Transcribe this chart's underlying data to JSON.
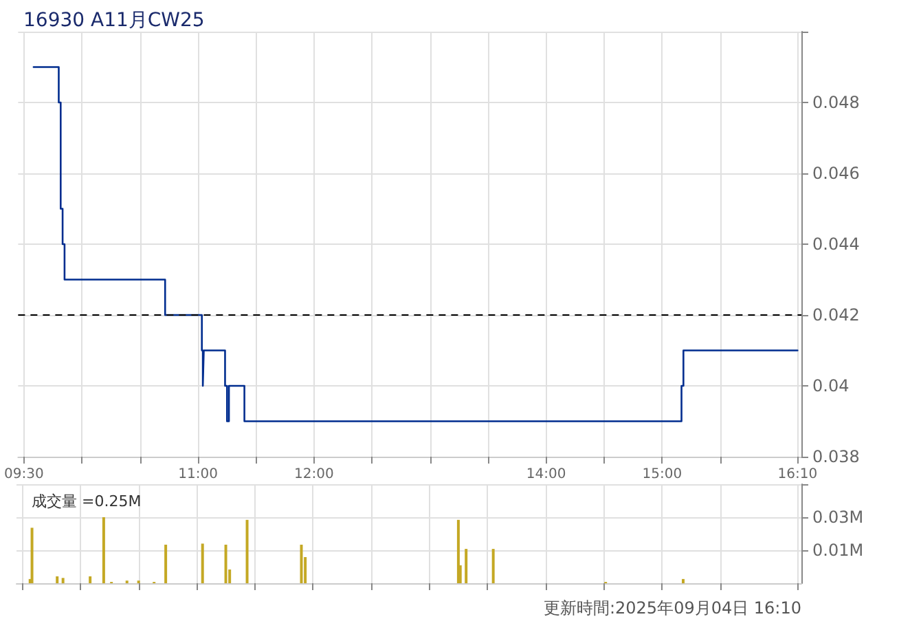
{
  "chart_data": [
    {
      "type": "step",
      "title": "16930 A11月CW25",
      "series": [
        {
          "color": "#002d8f",
          "x": [
            9.5833,
            9.8,
            9.8167,
            9.8333,
            9.85,
            10.7167,
            11.0333,
            11.0417,
            11.05,
            11.2333,
            11.25,
            11.2667,
            11.4,
            15.1667,
            15.1833,
            16.1667
          ],
          "values": [
            0.049,
            0.048,
            0.045,
            0.044,
            0.043,
            0.042,
            0.041,
            0.04,
            0.041,
            0.04,
            0.039,
            0.04,
            0.039,
            0.04,
            0.041,
            0.041
          ]
        }
      ],
      "xlim": [
        9.45,
        16.2
      ],
      "xticks": [
        {
          "value": 9.5,
          "label": "09:30"
        },
        {
          "value": 10,
          "label": null
        },
        {
          "value": 10.5,
          "label": null
        },
        {
          "value": 11,
          "label": "11:00"
        },
        {
          "value": 11.5,
          "label": null
        },
        {
          "value": 12,
          "label": "12:00"
        },
        {
          "value": 12.5,
          "label": null
        },
        {
          "value": 13,
          "label": null
        },
        {
          "value": 13.5,
          "label": null
        },
        {
          "value": 14,
          "label": "14:00"
        },
        {
          "value": 14.5,
          "label": null
        },
        {
          "value": 15,
          "label": "15:00"
        },
        {
          "value": 15.5,
          "label": null
        },
        {
          "value": 16.1667,
          "label": "16:10"
        }
      ],
      "ylim": [
        0.038,
        0.05
      ],
      "yticks": [
        0.038,
        0.04,
        0.042,
        0.044,
        0.046,
        0.048,
        {
          "value": 0.05,
          "label": null
        }
      ],
      "ref_lines": [
        {
          "axis": "y",
          "value": 0.042,
          "color": "#000000",
          "line_style": "dashed"
        }
      ],
      "grid": true,
      "marker": "none"
    },
    {
      "type": "bar",
      "title": "成交量 =0.25M",
      "x": [
        9.5667,
        9.5833,
        9.8,
        9.85,
        10.0833,
        10.2,
        10.2667,
        10.4,
        10.5,
        10.6333,
        10.7333,
        11.05,
        11.25,
        11.2833,
        11.4333,
        11.9,
        11.9333,
        13.25,
        13.2667,
        13.3167,
        13.55,
        14.5167,
        15.1833
      ],
      "values": [
        0.0016,
        0.021,
        0.0026,
        0.002,
        0.0026,
        0.025,
        0.0005,
        0.001,
        0.001,
        0.0005,
        0.0146,
        0.015,
        0.0146,
        0.0052,
        0.024,
        0.0146,
        0.0099,
        0.024,
        0.0068,
        0.013,
        0.013,
        0.0005,
        0.0016
      ],
      "color": "#c4a824",
      "xlim": [
        9.45,
        16.2
      ],
      "xticks": [
        9.5,
        10,
        10.5,
        11,
        11.5,
        12,
        12.5,
        13,
        13.5,
        14,
        14.5,
        15,
        15.5,
        16.1667
      ],
      "ylim": [
        0,
        0.0375
      ],
      "yticks": [
        {
          "value": 0.0125,
          "label": "0.01M"
        },
        {
          "value": 0.025,
          "label": "0.03M"
        },
        {
          "value": 0.0375,
          "label": null
        }
      ],
      "tick_labels": "y",
      "grid": true,
      "annotations": [
        "更新時間:2025年09月04日 16:10"
      ]
    }
  ]
}
